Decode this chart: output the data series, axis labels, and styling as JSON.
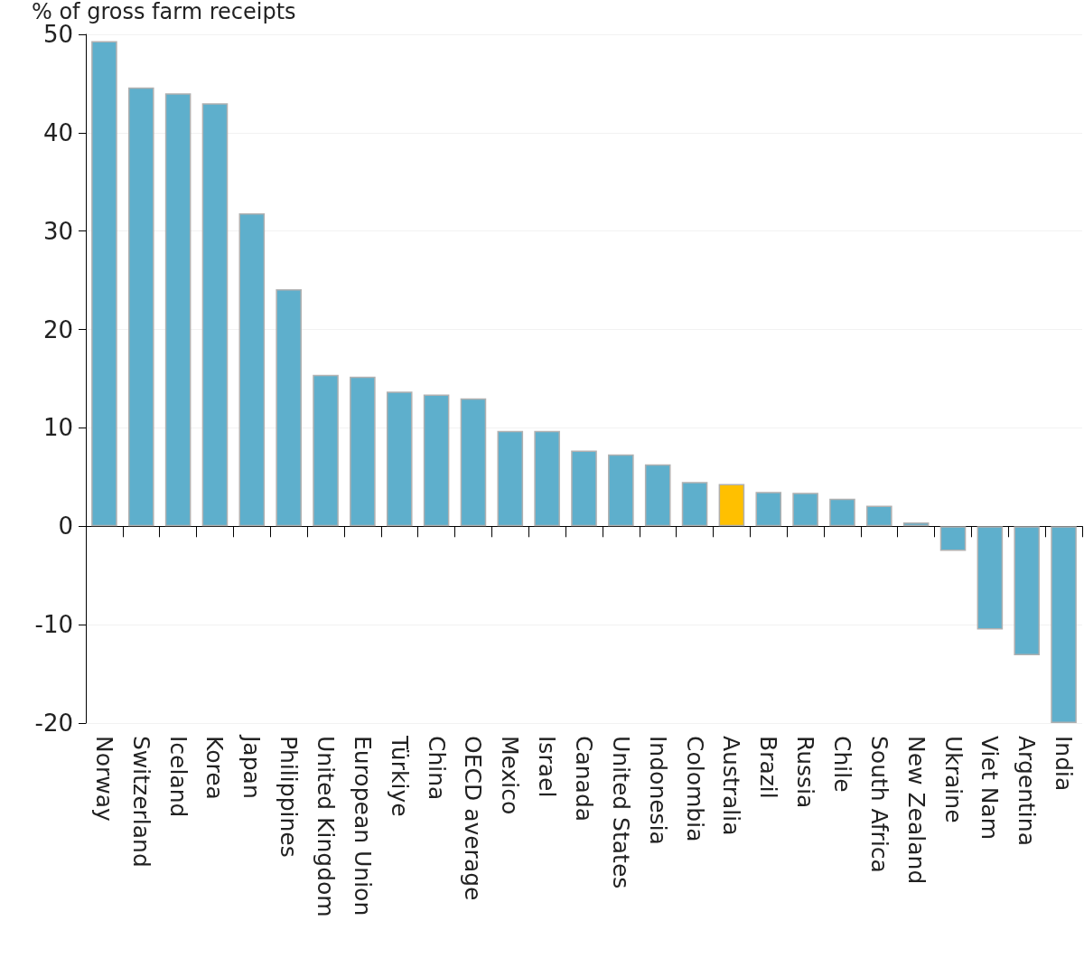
{
  "chart_data": {
    "type": "bar",
    "ylabel": "% of gross farm receipts",
    "categories": [
      "Norway",
      "Switzerland",
      "Iceland",
      "Korea",
      "Japan",
      "Philippines",
      "United Kingdom",
      "European Union",
      "Türkiye",
      "China",
      "OECD average",
      "Mexico",
      "Israel",
      "Canada",
      "United States",
      "Indonesia",
      "Colombia",
      "Australia",
      "Brazil",
      "Russia",
      "Chile",
      "South Africa",
      "New Zealand",
      "Ukraine",
      "Viet Nam",
      "Argentina",
      "India"
    ],
    "values": [
      49.3,
      44.6,
      44.0,
      43.0,
      31.8,
      24.1,
      15.4,
      15.2,
      13.7,
      13.4,
      13.0,
      9.7,
      9.7,
      7.7,
      7.3,
      6.3,
      4.5,
      4.3,
      3.5,
      3.4,
      2.8,
      2.1,
      0.4,
      -2.5,
      -10.5,
      -13.1,
      -20
    ],
    "colors": [
      "#5eafcc",
      "#5eafcc",
      "#5eafcc",
      "#5eafcc",
      "#5eafcc",
      "#5eafcc",
      "#5eafcc",
      "#5eafcc",
      "#5eafcc",
      "#5eafcc",
      "#5eafcc",
      "#5eafcc",
      "#5eafcc",
      "#5eafcc",
      "#5eafcc",
      "#5eafcc",
      "#5eafcc",
      "#ffc000",
      "#5eafcc",
      "#5eafcc",
      "#5eafcc",
      "#5eafcc",
      "#5eafcc",
      "#5eafcc",
      "#5eafcc",
      "#5eafcc",
      "#5eafcc"
    ],
    "ylim": [
      -20,
      50
    ],
    "yticks": [
      -20,
      -10,
      0,
      10,
      20,
      30,
      40,
      50
    ],
    "grid": "y"
  }
}
